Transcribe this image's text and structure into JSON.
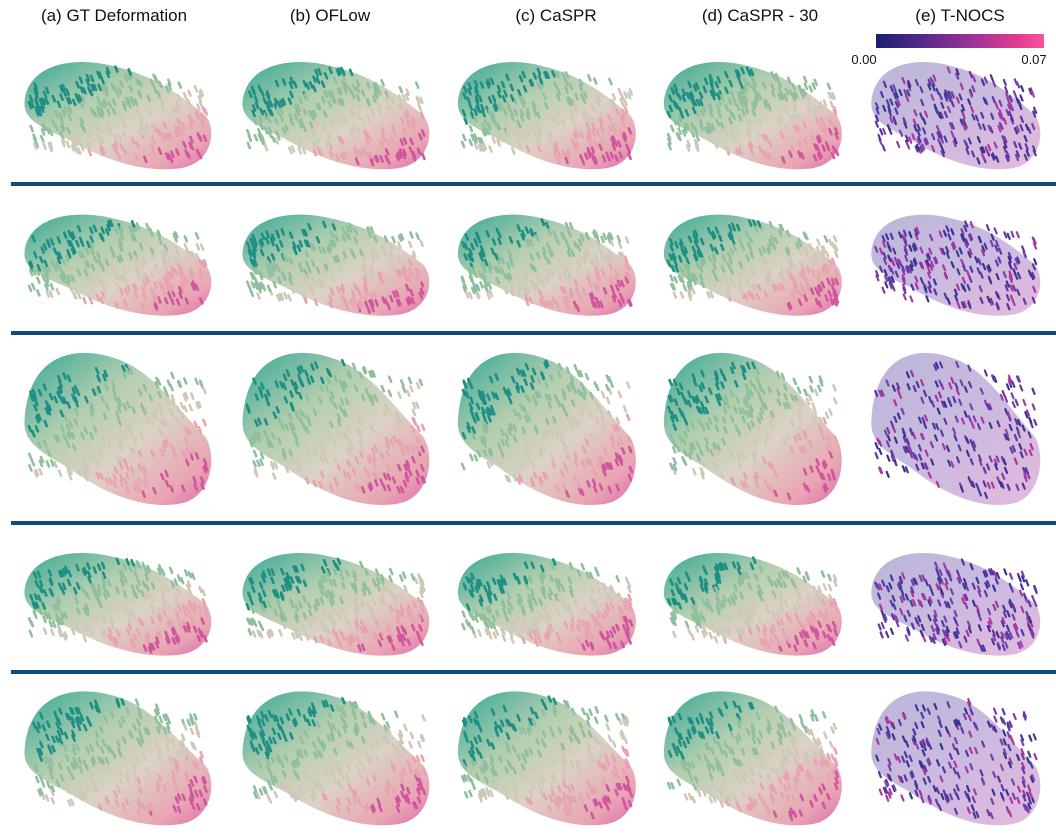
{
  "columns": [
    {
      "label": "(a) GT Deformation"
    },
    {
      "label": "(b) OFLow"
    },
    {
      "label": "(c) CaSPR"
    },
    {
      "label": "(d) CaSPR - 30"
    },
    {
      "label": "(e) T-NOCS"
    }
  ],
  "colorbar": {
    "min": "0.00",
    "max": "0.07",
    "colors": [
      "#1c1f6e",
      "#a43399",
      "#f7559a"
    ]
  },
  "rows": 5,
  "divider_color": "#0f4a7a"
}
